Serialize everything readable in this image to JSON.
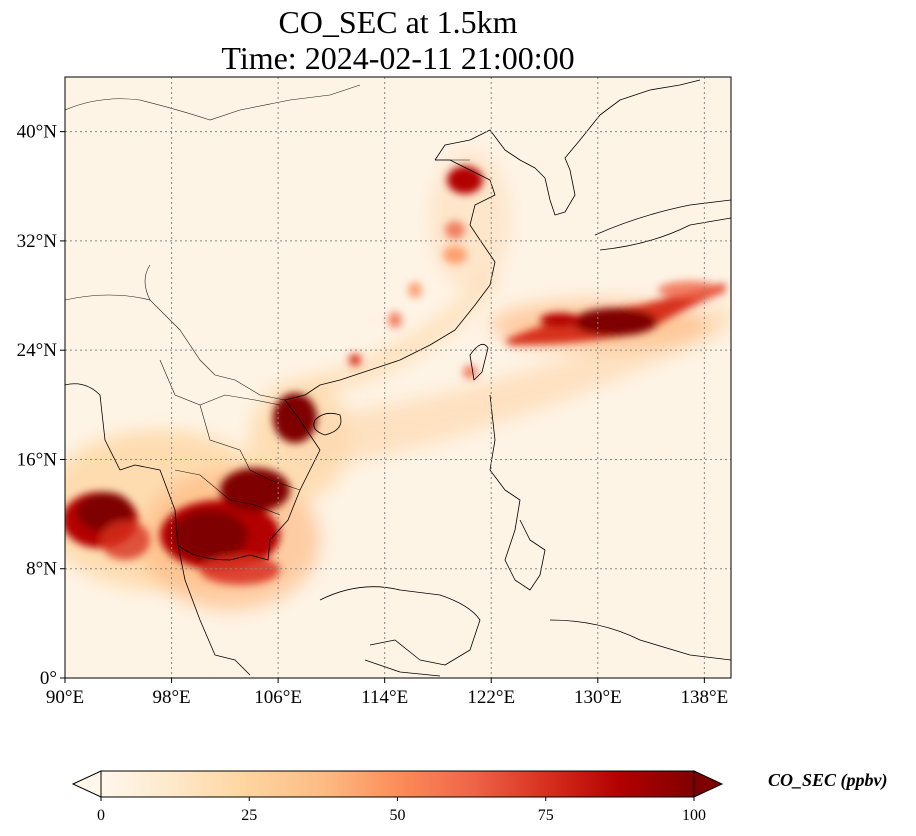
{
  "figure": {
    "title_line1": "CO_SEC at 1.5km",
    "title_line2": "Time: 2024-02-11 21:00:00"
  },
  "map": {
    "projection": "PlateCarree",
    "lon_range": [
      90,
      140
    ],
    "lat_range": [
      0,
      44
    ],
    "gridlines": "dotted gray",
    "coastlines": true,
    "borders": true,
    "lon_ticks": [
      {
        "value": 90,
        "label": "90°E"
      },
      {
        "value": 98,
        "label": "98°E"
      },
      {
        "value": 106,
        "label": "106°E"
      },
      {
        "value": 114,
        "label": "114°E"
      },
      {
        "value": 122,
        "label": "122°E"
      },
      {
        "value": 130,
        "label": "130°E"
      },
      {
        "value": 138,
        "label": "138°E"
      }
    ],
    "lat_ticks": [
      {
        "value": 0,
        "label": "0°"
      },
      {
        "value": 8,
        "label": "8°N"
      },
      {
        "value": 16,
        "label": "16°N"
      },
      {
        "value": 24,
        "label": "24°N"
      },
      {
        "value": 32,
        "label": "32°N"
      },
      {
        "value": 40,
        "label": "40°N"
      }
    ]
  },
  "colorbar": {
    "label": "CO_SEC (ppbv)",
    "cmap": "OrRd",
    "min": 0,
    "max": 100,
    "extend": "both",
    "ticks": [
      {
        "value": 0,
        "label": "0"
      },
      {
        "value": 25,
        "label": "25"
      },
      {
        "value": 50,
        "label": "50"
      },
      {
        "value": 75,
        "label": "75"
      },
      {
        "value": 100,
        "label": "100"
      }
    ],
    "colors": [
      "#fff7ec",
      "#fee8c8",
      "#fdd49e",
      "#fdbb84",
      "#fc8d59",
      "#ef6548",
      "#d7301f",
      "#b30000",
      "#7f0000"
    ]
  },
  "plumes": [
    {
      "id": "indochina-west",
      "lon": 92.5,
      "lat": 12.5,
      "value": 100
    },
    {
      "id": "thailand-cambodia",
      "lon": 101.5,
      "lat": 10.5,
      "value": 100
    },
    {
      "id": "laos-vietnam",
      "lon": 104.5,
      "lat": 14.2,
      "value": 100
    },
    {
      "id": "gulf-of-tonkin",
      "lon": 107.2,
      "lat": 19.3,
      "value": 100
    },
    {
      "id": "bohai-bay",
      "lon": 119.5,
      "lat": 37.8,
      "value": 90
    },
    {
      "id": "east-china-sea-band",
      "lon": 131,
      "lat": 26.5,
      "value": 100
    },
    {
      "id": "pacific-outflow",
      "lon": 137,
      "lat": 29,
      "value": 55
    }
  ]
}
